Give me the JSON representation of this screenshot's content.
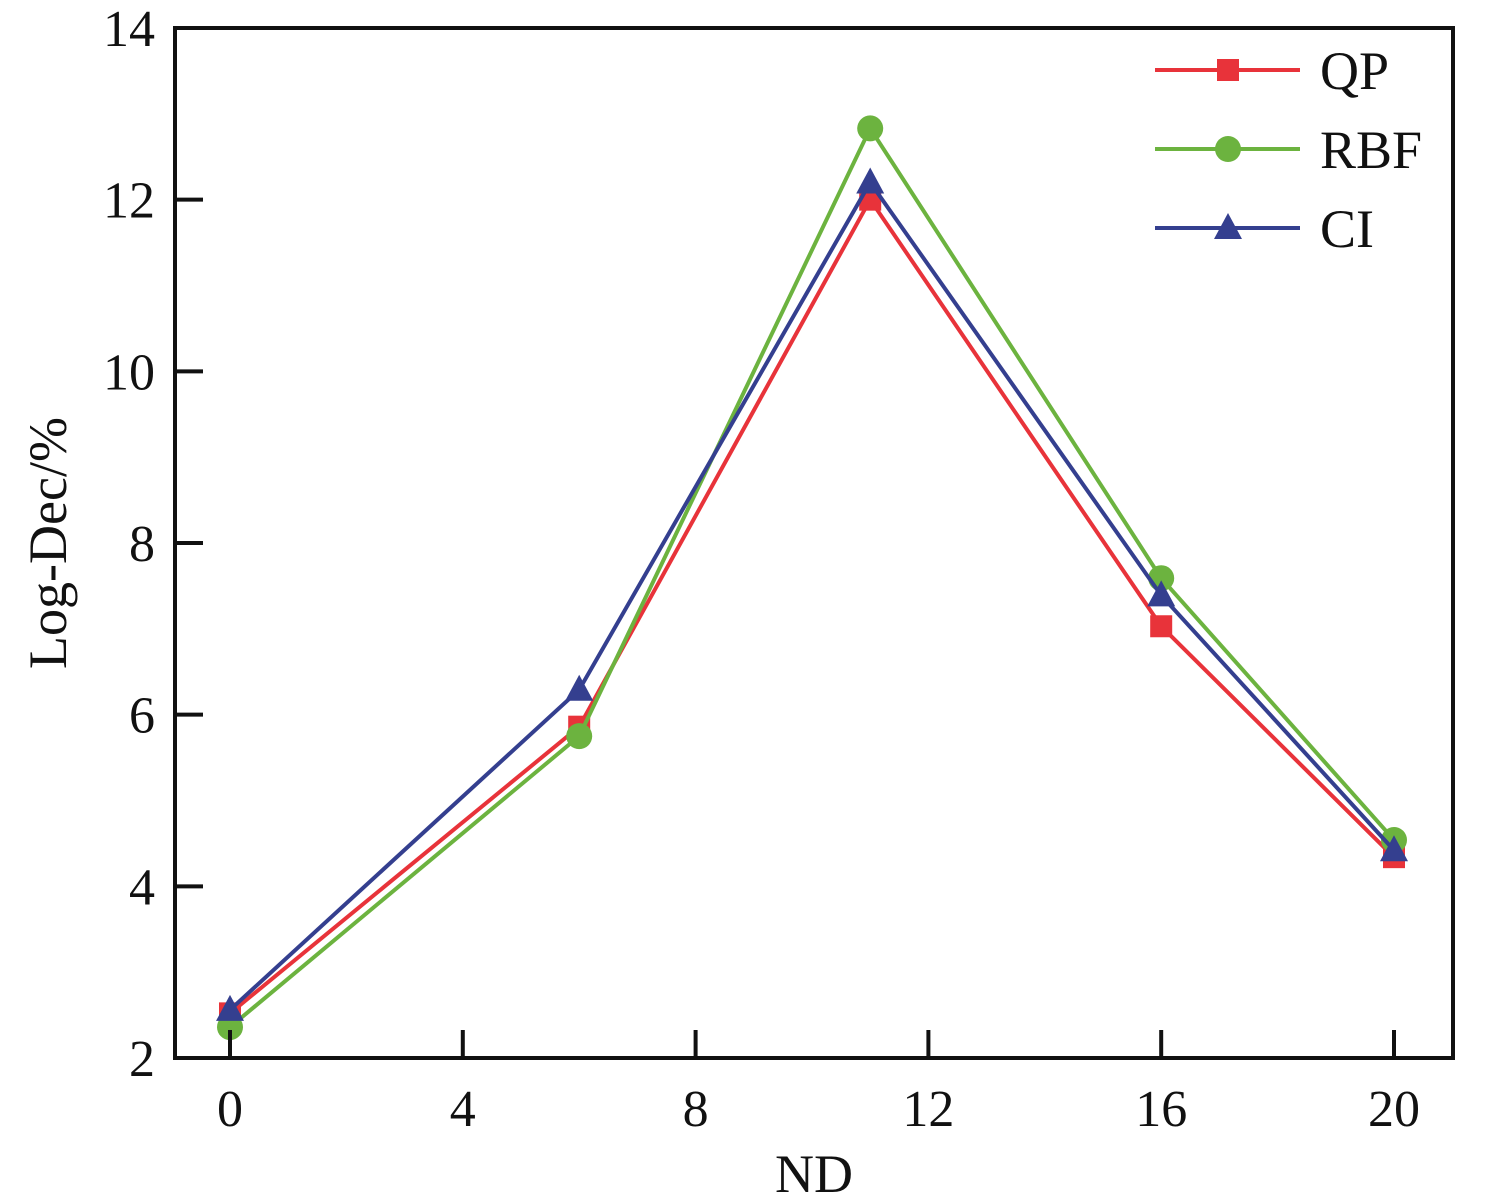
{
  "chart_data": {
    "type": "line",
    "title": "",
    "xlabel": "ND",
    "ylabel": "Log-Dec/%",
    "xlim": [
      -1,
      21
    ],
    "ylim": [
      2,
      14
    ],
    "xticks": [
      0,
      4,
      8,
      12,
      16,
      20
    ],
    "yticks": [
      2,
      4,
      6,
      8,
      10,
      12,
      14
    ],
    "x": [
      0,
      6,
      11,
      16,
      20
    ],
    "grid": false,
    "legend_position": "top-right",
    "series": [
      {
        "name": "QP",
        "color": "#e8333a",
        "marker": "square",
        "values": [
          2.52,
          5.86,
          12.0,
          7.03,
          4.34
        ]
      },
      {
        "name": "RBF",
        "color": "#6cb33f",
        "marker": "circle",
        "values": [
          2.36,
          5.75,
          12.83,
          7.59,
          4.54
        ]
      },
      {
        "name": "CI",
        "color": "#343f8f",
        "marker": "triangle",
        "values": [
          2.56,
          6.29,
          12.2,
          7.39,
          4.42
        ]
      }
    ]
  }
}
